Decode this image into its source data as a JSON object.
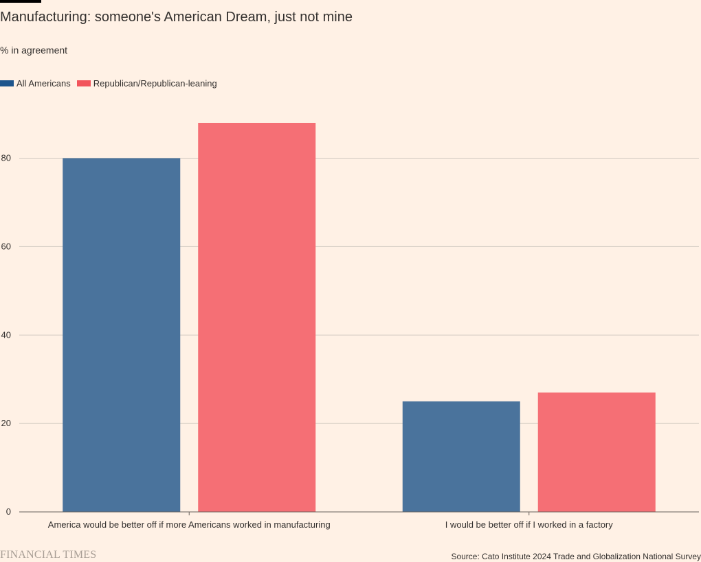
{
  "header": {
    "title": "Manufacturing: someone's American Dream, just not mine",
    "subtitle": "% in agreement"
  },
  "legend": {
    "items": [
      {
        "label": "All Americans",
        "color": "#1E558C"
      },
      {
        "label": "Republican/Republican-leaning",
        "color": "#F2545B"
      }
    ]
  },
  "footer": {
    "brand": "FINANCIAL TIMES",
    "source": "Source: Cato Institute 2024 Trade and Globalization National Survey"
  },
  "chart_data": {
    "type": "bar",
    "categories": [
      "America would be better off if more Americans worked in manufacturing",
      "I would be better off if I worked in a factory"
    ],
    "series": [
      {
        "name": "All Americans",
        "values": [
          80,
          25
        ],
        "color": "#4A739C"
      },
      {
        "name": "Republican/Republican-leaning",
        "values": [
          88,
          27
        ],
        "color": "#F56F75"
      }
    ],
    "title": "Manufacturing: someone's American Dream, just not mine",
    "ylabel": "% in agreement",
    "ylim": [
      0,
      88
    ],
    "yticks": [
      0,
      20,
      40,
      60,
      80
    ],
    "grid": true,
    "legend_position": "top-left"
  }
}
